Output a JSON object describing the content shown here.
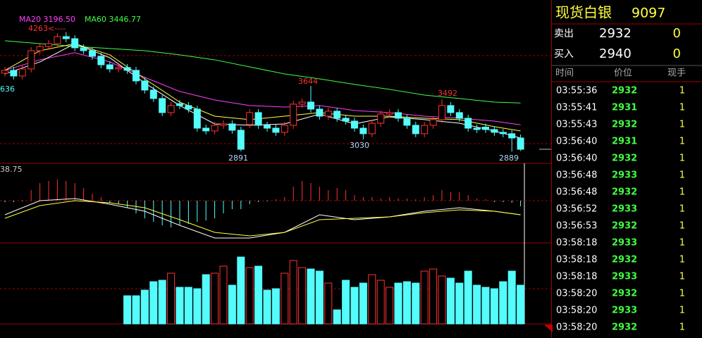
{
  "chart": {
    "ylim": [
      2753,
      4632
    ],
    "candles": [
      [
        3790,
        3863,
        3750,
        3823
      ],
      [
        3823,
        3863,
        3718,
        3758
      ],
      [
        3758,
        3879,
        3718,
        3839
      ],
      [
        3839,
        4089,
        3799,
        4049
      ],
      [
        4049,
        4138,
        4009,
        4098
      ],
      [
        4098,
        4170,
        4058,
        4130
      ],
      [
        4130,
        4251,
        4090,
        4211
      ],
      [
        4211,
        4263,
        4147,
        4187
      ],
      [
        4187,
        4227,
        4042,
        4082
      ],
      [
        4082,
        4122,
        4009,
        4049
      ],
      [
        4049,
        4089,
        3945,
        3985
      ],
      [
        3985,
        4025,
        3847,
        3887
      ],
      [
        3887,
        3927,
        3799,
        3839
      ],
      [
        3839,
        3895,
        3799,
        3855
      ],
      [
        3855,
        3895,
        3783,
        3823
      ],
      [
        3823,
        3863,
        3661,
        3701
      ],
      [
        3701,
        3741,
        3556,
        3596
      ],
      [
        3596,
        3636,
        3459,
        3499
      ],
      [
        3499,
        3539,
        3297,
        3337
      ],
      [
        3337,
        3458,
        3297,
        3418
      ],
      [
        3440,
        3480,
        3378,
        3418
      ],
      [
        3418,
        3458,
        3337,
        3377
      ],
      [
        3377,
        3417,
        3118,
        3158
      ],
      [
        3158,
        3198,
        3086,
        3126
      ],
      [
        3126,
        3231,
        3086,
        3191
      ],
      [
        3191,
        3247,
        3151,
        3207
      ],
      [
        3207,
        3247,
        3094,
        3134
      ],
      [
        3134,
        3174,
        2891,
        2915
      ],
      [
        3200,
        3377,
        3160,
        3337
      ],
      [
        3337,
        3377,
        3151,
        3191
      ],
      [
        3191,
        3231,
        3118,
        3158
      ],
      [
        3158,
        3198,
        3070,
        3110
      ],
      [
        3110,
        3231,
        3070,
        3191
      ],
      [
        3191,
        3474,
        3151,
        3434
      ],
      [
        3434,
        3498,
        3394,
        3458
      ],
      [
        3458,
        3644,
        3337,
        3377
      ],
      [
        3377,
        3417,
        3256,
        3296
      ],
      [
        3296,
        3393,
        3256,
        3353
      ],
      [
        3353,
        3393,
        3232,
        3272
      ],
      [
        3272,
        3312,
        3199,
        3239
      ],
      [
        3239,
        3279,
        3118,
        3158
      ],
      [
        3158,
        3198,
        3030,
        3094
      ],
      [
        3094,
        3255,
        3054,
        3215
      ],
      [
        3215,
        3360,
        3175,
        3320
      ],
      [
        3320,
        3377,
        3280,
        3337
      ],
      [
        3337,
        3377,
        3232,
        3272
      ],
      [
        3272,
        3312,
        3151,
        3191
      ],
      [
        3191,
        3231,
        3054,
        3094
      ],
      [
        3094,
        3231,
        3054,
        3191
      ],
      [
        3191,
        3296,
        3151,
        3256
      ],
      [
        3256,
        3492,
        3216,
        3418
      ],
      [
        3418,
        3458,
        3297,
        3337
      ],
      [
        3337,
        3377,
        3232,
        3272
      ],
      [
        3272,
        3312,
        3118,
        3158
      ],
      [
        3158,
        3198,
        3102,
        3142
      ],
      [
        3170,
        3210,
        3102,
        3142
      ],
      [
        3142,
        3182,
        3070,
        3110
      ],
      [
        3110,
        3150,
        3054,
        3094
      ],
      [
        3094,
        3134,
        2889,
        3045
      ],
      [
        3045,
        3085,
        2895,
        2915
      ]
    ],
    "up_color": "#ff3232",
    "down_color": "#54fcfc",
    "ma_index": [
      0,
      4,
      8,
      12,
      16,
      20,
      24,
      28,
      32,
      36,
      40,
      44,
      48,
      52,
      56,
      59
    ],
    "ma": [
      {
        "name": "MA20 3196.50",
        "color": "#ff40ff",
        "values": [
          3823,
          3944,
          4025,
          3920,
          3742,
          3580,
          3482,
          3418,
          3401,
          3418,
          3361,
          3337,
          3296,
          3272,
          3239,
          3196
        ]
      },
      {
        "name": "MA60 3446.77",
        "color": "#40ff40",
        "values": [
          4163,
          4130,
          4098,
          4074,
          4049,
          4001,
          3944,
          3863,
          3782,
          3725,
          3661,
          3604,
          3539,
          3499,
          3458,
          3447
        ]
      },
      {
        "color": "#ffff40",
        "values": [
          3823,
          4049,
          4130,
          4001,
          3725,
          3458,
          3296,
          3256,
          3296,
          3337,
          3296,
          3296,
          3272,
          3256,
          3175,
          3126
        ]
      },
      {
        "color": "#ffffff",
        "values": [
          3782,
          3920,
          4130,
          3968,
          3677,
          3418,
          3207,
          3191,
          3207,
          3320,
          3207,
          3288,
          3256,
          3215,
          3126,
          3045
        ]
      }
    ],
    "annotations": [
      "4263<----",
      "3644",
      "3492",
      "2891",
      "3030",
      "2889",
      "636"
    ],
    "macd": {
      "ylim": [
        -120,
        106
      ],
      "top_label": "38.75",
      "bars": [
        -4,
        -4,
        -2,
        30,
        50,
        56,
        60,
        56,
        50,
        36,
        20,
        10,
        -6,
        -10,
        -20,
        -36,
        -50,
        -60,
        -70,
        -76,
        -70,
        -66,
        -60,
        -56,
        -50,
        -36,
        -24,
        -24,
        -10,
        -4,
        -2,
        4,
        10,
        40,
        56,
        50,
        40,
        30,
        36,
        30,
        16,
        10,
        10,
        6,
        10,
        6,
        6,
        4,
        10,
        16,
        30,
        24,
        24,
        16,
        6,
        4,
        -4,
        -4,
        -6,
        -16
      ],
      "lines": [
        {
          "color": "#ffffff",
          "values": [
            -40,
            0,
            6,
            -10,
            -30,
            -70,
            -106,
            -106,
            -90,
            -40,
            -54,
            -46,
            -30,
            -20,
            -30,
            -40
          ]
        },
        {
          "color": "#ffff40",
          "values": [
            -50,
            -14,
            0,
            -6,
            -20,
            -54,
            -90,
            -100,
            -90,
            -54,
            -50,
            -46,
            -34,
            -26,
            -30,
            -40
          ]
        }
      ]
    },
    "volume": {
      "ylim": [
        0,
        115
      ],
      "values": [
        null,
        null,
        null,
        null,
        null,
        null,
        null,
        null,
        null,
        null,
        null,
        null,
        null,
        null,
        40,
        40,
        48,
        60,
        62,
        72,
        52,
        52,
        50,
        70,
        72,
        82,
        55,
        95,
        80,
        82,
        48,
        50,
        72,
        90,
        80,
        78,
        75,
        58,
        20,
        62,
        52,
        58,
        70,
        62,
        52,
        58,
        60,
        58,
        75,
        78,
        68,
        65,
        58,
        75,
        55,
        52,
        50,
        60,
        75,
        55
      ]
    }
  },
  "quote_panel": {
    "title": "现货白银",
    "code": "9097",
    "ask": {
      "label": "卖出",
      "price": 2932,
      "qty": 0
    },
    "bid": {
      "label": "买入",
      "price": 2940,
      "qty": 0
    },
    "headers": [
      "时间",
      "价位",
      "现手"
    ],
    "trades": [
      [
        "03:55:36",
        2932,
        1
      ],
      [
        "03:55:41",
        2931,
        1
      ],
      [
        "03:55:43",
        2932,
        1
      ],
      [
        "03:56:40",
        2931,
        1
      ],
      [
        "03:56:40",
        2932,
        1
      ],
      [
        "03:56:48",
        2933,
        1
      ],
      [
        "03:56:48",
        2932,
        1
      ],
      [
        "03:56:52",
        2933,
        1
      ],
      [
        "03:56:53",
        2932,
        1
      ],
      [
        "03:58:18",
        2933,
        1
      ],
      [
        "03:58:18",
        2932,
        1
      ],
      [
        "03:58:18",
        2933,
        1
      ],
      [
        "03:58:20",
        2932,
        1
      ],
      [
        "03:58:20",
        2933,
        1
      ],
      [
        "03:58:20",
        2932,
        1
      ]
    ]
  }
}
